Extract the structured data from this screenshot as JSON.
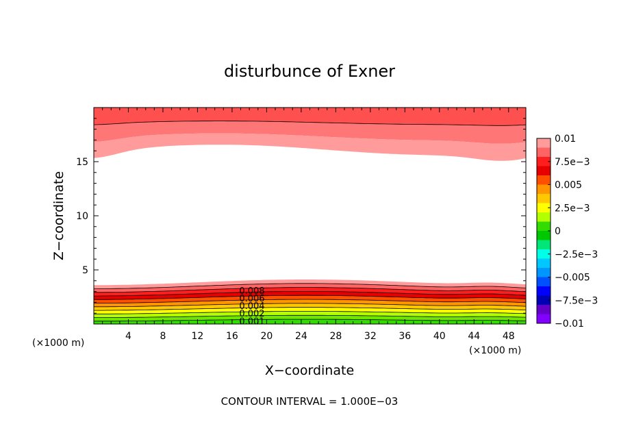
{
  "chart_data": {
    "type": "contour",
    "title": "disturbunce of Exner",
    "xlabel": "X−coordinate",
    "ylabel": "Z−coordinate",
    "x_unit": "(×1000 m)",
    "y_unit": "(×1000 m)",
    "xlim": [
      0,
      50
    ],
    "ylim": [
      0,
      20
    ],
    "x_ticks": [
      "4",
      "8",
      "12",
      "16",
      "20",
      "24",
      "28",
      "32",
      "36",
      "40",
      "44",
      "48"
    ],
    "x_tick_values": [
      4,
      8,
      12,
      16,
      20,
      24,
      28,
      32,
      36,
      40,
      44,
      48
    ],
    "y_ticks": [
      "5",
      "10",
      "15"
    ],
    "y_tick_values": [
      5,
      10,
      15
    ],
    "footer": "CONTOUR INTERVAL = 1.000E−03",
    "contour_interval": 0.001,
    "contour_labels": [
      "0.008",
      "0.006",
      "0.004",
      "0.002",
      "0.001"
    ],
    "colorbar": {
      "labels": [
        "0.01",
        "7.5e−3",
        "0.005",
        "2.5e−3",
        "0",
        "−2.5e−3",
        "−0.005",
        "−7.5e−3",
        "−0.01"
      ],
      "label_values": [
        0.01,
        0.0075,
        0.005,
        0.0025,
        0,
        -0.0025,
        -0.005,
        -0.0075,
        -0.01
      ],
      "range": [
        -0.01,
        0.01
      ],
      "colors_top_to_bottom": [
        "#ff9b9b",
        "#ff6464",
        "#ff1e1e",
        "#e60000",
        "#ff5000",
        "#ff9600",
        "#ffc800",
        "#ffff00",
        "#b4ff00",
        "#32dc00",
        "#00c800",
        "#00e678",
        "#00ffe6",
        "#00c8ff",
        "#0096ff",
        "#0050ff",
        "#0000ff",
        "#0000b4",
        "#6400c8",
        "#8200ff"
      ]
    }
  }
}
